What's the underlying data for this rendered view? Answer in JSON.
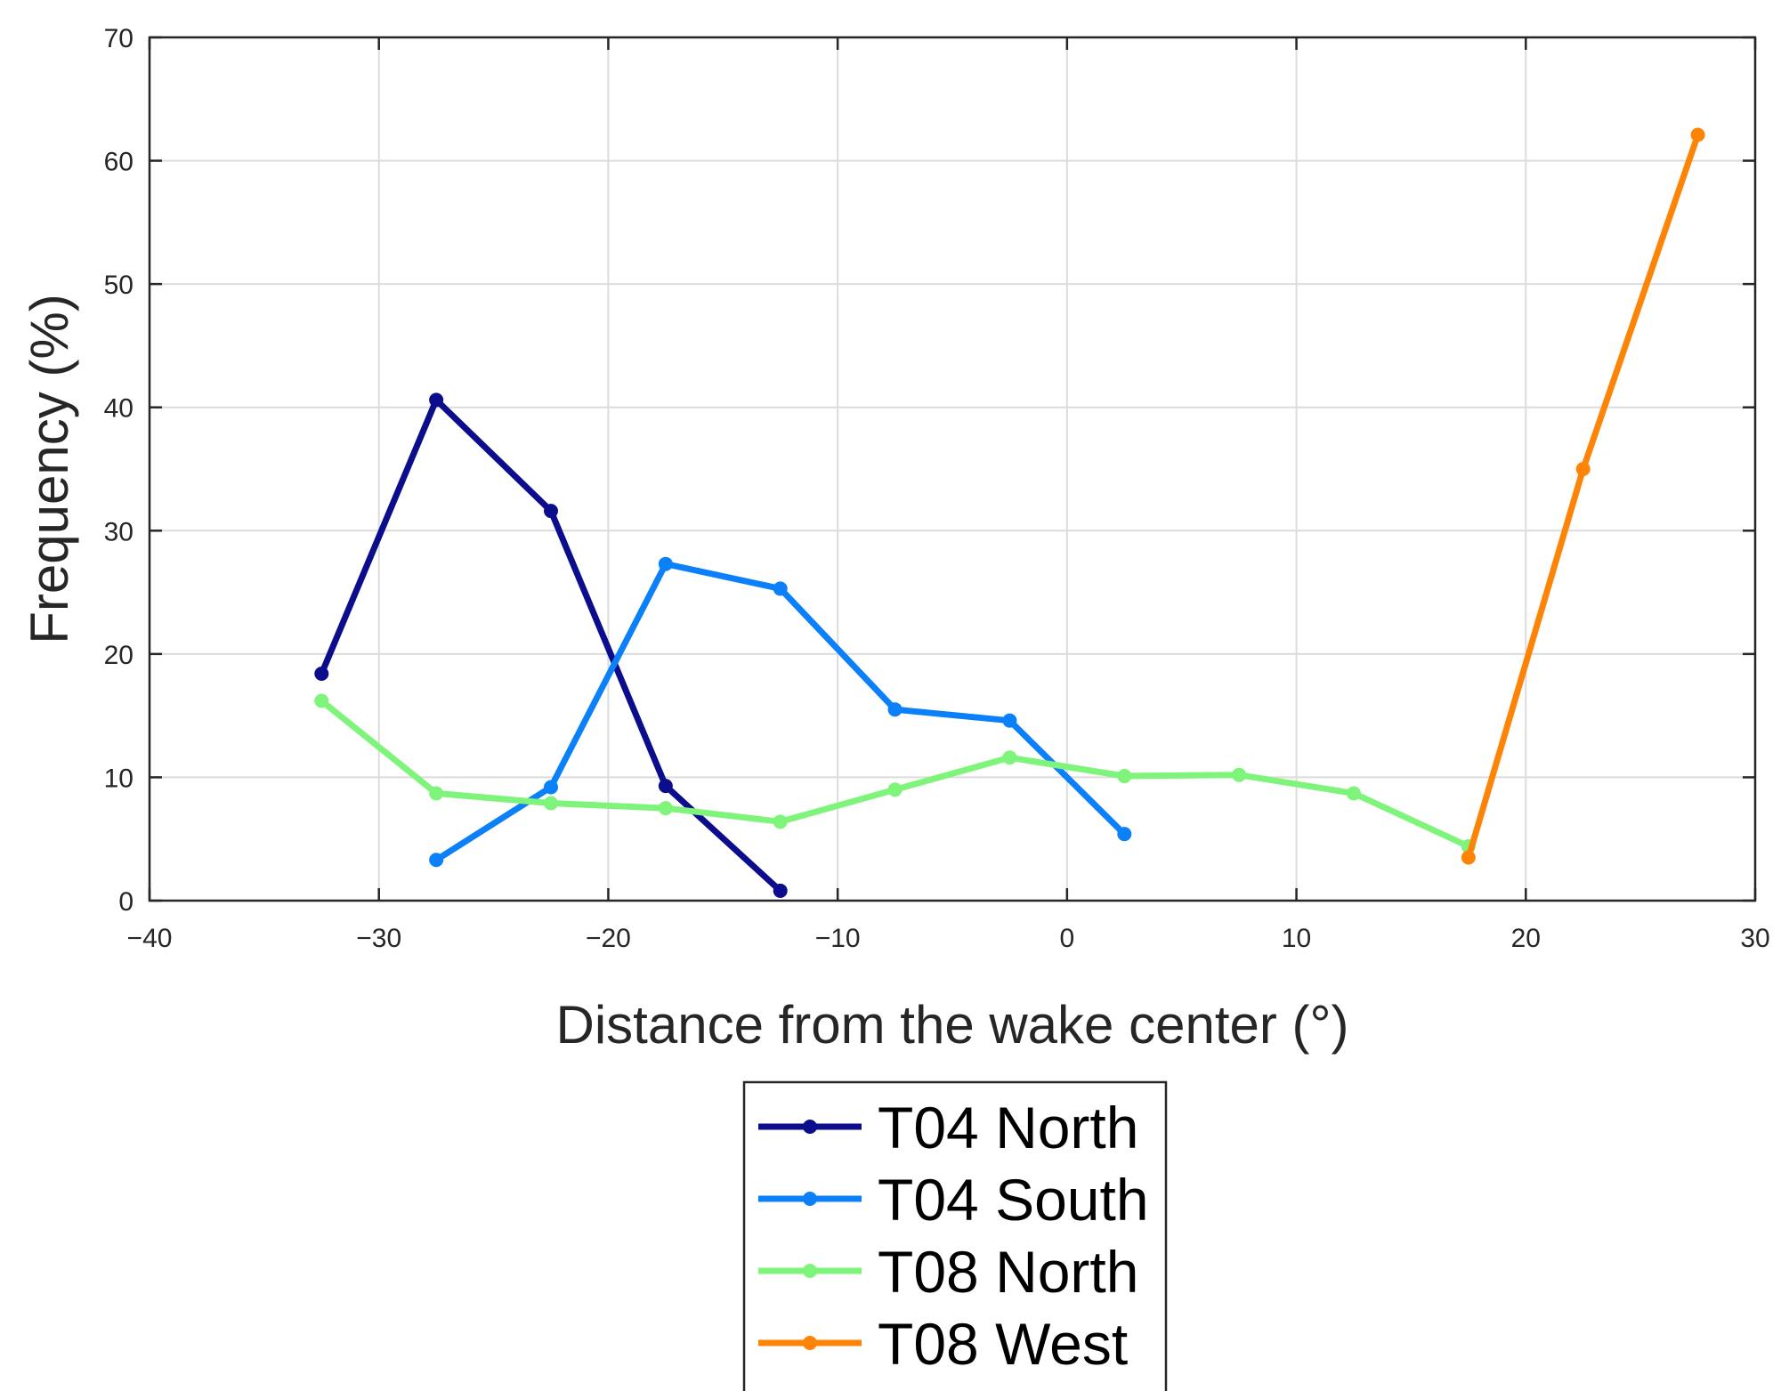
{
  "chart_data": {
    "type": "line",
    "xlabel": "Distance from the wake center (°)",
    "ylabel": "Frequency (%)",
    "xlim": [
      -40,
      30
    ],
    "ylim": [
      0,
      70
    ],
    "xticks": [
      -40,
      -30,
      -20,
      -10,
      0,
      10,
      20,
      30
    ],
    "xtick_labels": [
      "−40",
      "−30",
      "−20",
      "−10",
      "0",
      "10",
      "20",
      "30"
    ],
    "yticks": [
      0,
      10,
      20,
      30,
      40,
      50,
      60,
      70
    ],
    "ytick_labels": [
      "0",
      "10",
      "20",
      "30",
      "40",
      "50",
      "60",
      "70"
    ],
    "grid": true,
    "legend_position": "below",
    "series": [
      {
        "name": "T04 North",
        "color": "#0b0d8c",
        "x": [
          -32.5,
          -27.5,
          -22.5,
          -17.5,
          -12.5
        ],
        "y": [
          18.4,
          40.6,
          31.6,
          9.3,
          0.8
        ]
      },
      {
        "name": "T04 South",
        "color": "#0b80f9",
        "x": [
          -27.5,
          -22.5,
          -17.5,
          -12.5,
          -7.5,
          -2.5,
          2.5
        ],
        "y": [
          3.3,
          9.2,
          27.3,
          25.3,
          15.5,
          14.6,
          5.4
        ]
      },
      {
        "name": "T08 North",
        "color": "#7ef47a",
        "x": [
          -32.5,
          -27.5,
          -22.5,
          -17.5,
          -12.5,
          -7.5,
          -2.5,
          2.5,
          7.5,
          12.5,
          17.5
        ],
        "y": [
          16.2,
          8.7,
          7.9,
          7.5,
          6.4,
          9.0,
          11.6,
          10.1,
          10.2,
          8.7,
          4.4
        ]
      },
      {
        "name": "T08 West",
        "color": "#fe8408",
        "x": [
          17.5,
          22.5,
          27.5
        ],
        "y": [
          3.5,
          35.0,
          62.1
        ]
      }
    ]
  }
}
